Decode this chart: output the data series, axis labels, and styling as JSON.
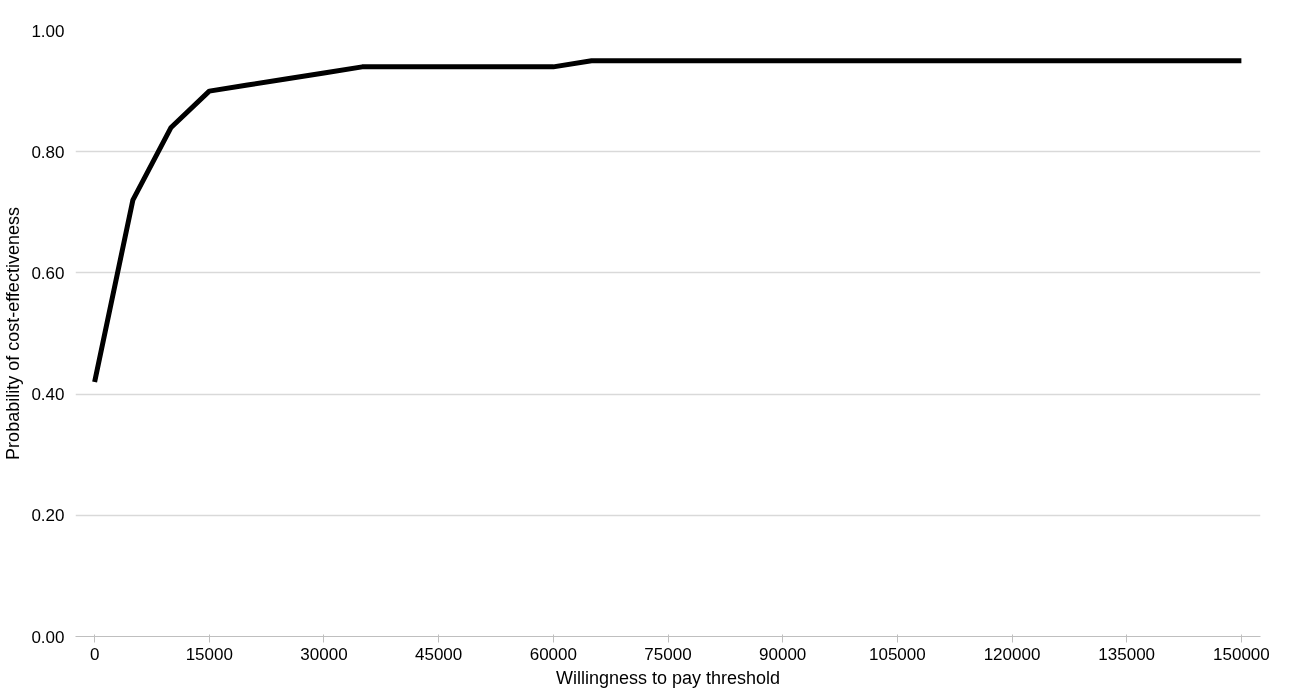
{
  "chart_data": {
    "type": "line",
    "xlabel": "Willingness to pay threshold",
    "ylabel": "Probability of cost-effectiveness",
    "x": [
      0,
      5000,
      10000,
      15000,
      20000,
      25000,
      30000,
      35000,
      40000,
      45000,
      50000,
      55000,
      60000,
      65000,
      70000,
      75000,
      80000,
      85000,
      90000,
      95000,
      100000,
      105000,
      110000,
      115000,
      120000,
      125000,
      130000,
      135000,
      140000,
      145000,
      150000
    ],
    "series": [
      {
        "color": "#000000",
        "values": [
          0.42,
          0.72,
          0.84,
          0.9,
          0.91,
          0.92,
          0.93,
          0.94,
          0.94,
          0.94,
          0.94,
          0.94,
          0.94,
          0.95,
          0.95,
          0.95,
          0.95,
          0.95,
          0.95,
          0.95,
          0.95,
          0.95,
          0.95,
          0.95,
          0.95,
          0.95,
          0.95,
          0.95,
          0.95,
          0.95,
          0.95
        ]
      }
    ],
    "xlim": [
      -2500,
      152500
    ],
    "ylim": [
      0,
      1
    ],
    "xticks": [
      0,
      15000,
      30000,
      45000,
      60000,
      75000,
      90000,
      105000,
      120000,
      135000,
      150000
    ],
    "yticks": [
      {
        "value": 0,
        "label": "0.00"
      },
      {
        "value": 0.2,
        "label": "0.20"
      },
      {
        "value": 0.4,
        "label": "0.40"
      },
      {
        "value": 0.6,
        "label": "0.60"
      },
      {
        "value": 0.8,
        "label": "0.80"
      },
      {
        "value": 1,
        "label": "1.00"
      }
    ],
    "grid": "y",
    "marker": "none",
    "line_style": "solid"
  }
}
